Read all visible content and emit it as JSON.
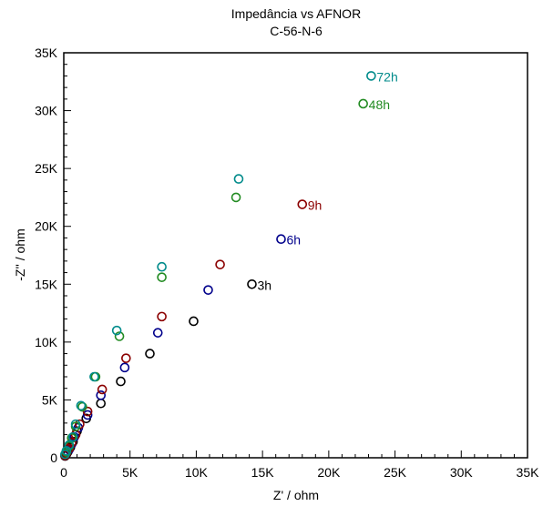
{
  "chart_data": {
    "type": "scatter",
    "title": "Impedância vs AFNOR",
    "subtitle": "C-56-N-6",
    "xlabel": "Z' / ohm",
    "ylabel": "-Z'' / ohm",
    "xlim": [
      0,
      35000
    ],
    "ylim": [
      0,
      35000
    ],
    "xticks": [
      0,
      5000,
      10000,
      15000,
      20000,
      25000,
      30000,
      35000
    ],
    "xtick_labels": [
      "0",
      "5K",
      "10K",
      "15K",
      "20K",
      "25K",
      "30K",
      "35K"
    ],
    "yticks": [
      0,
      5000,
      10000,
      15000,
      20000,
      25000,
      30000,
      35000
    ],
    "ytick_labels": [
      "0",
      "5K",
      "10K",
      "15K",
      "20K",
      "25K",
      "30K",
      "35K"
    ],
    "grid": false,
    "series": [
      {
        "name": "3h",
        "color": "#000000",
        "points": [
          [
            100,
            150
          ],
          [
            200,
            300
          ],
          [
            300,
            500
          ],
          [
            500,
            900
          ],
          [
            700,
            1400
          ],
          [
            1000,
            2300
          ],
          [
            1700,
            3400
          ],
          [
            2800,
            4700
          ],
          [
            4300,
            6600
          ],
          [
            6500,
            9000
          ],
          [
            9800,
            11800
          ],
          [
            14200,
            15000
          ]
        ]
      },
      {
        "name": "6h",
        "color": "#00008b",
        "points": [
          [
            100,
            200
          ],
          [
            200,
            400
          ],
          [
            400,
            700
          ],
          [
            600,
            1200
          ],
          [
            800,
            1800
          ],
          [
            1100,
            2600
          ],
          [
            1800,
            3700
          ],
          [
            2800,
            5400
          ],
          [
            4600,
            7800
          ],
          [
            7100,
            10800
          ],
          [
            10900,
            14500
          ],
          [
            16400,
            18900
          ]
        ]
      },
      {
        "name": "9h",
        "color": "#8b0000",
        "points": [
          [
            100,
            200
          ],
          [
            200,
            400
          ],
          [
            400,
            800
          ],
          [
            600,
            1300
          ],
          [
            900,
            2000
          ],
          [
            1200,
            2900
          ],
          [
            1800,
            4000
          ],
          [
            2900,
            5900
          ],
          [
            4700,
            8600
          ],
          [
            7400,
            12200
          ],
          [
            11800,
            16700
          ],
          [
            18000,
            21900
          ]
        ]
      },
      {
        "name": "48h",
        "color": "#228b22",
        "points": [
          [
            100,
            300
          ],
          [
            200,
            500
          ],
          [
            400,
            1000
          ],
          [
            600,
            1700
          ],
          [
            900,
            2700
          ],
          [
            1400,
            4400
          ],
          [
            2400,
            7000
          ],
          [
            4200,
            10500
          ],
          [
            7400,
            15600
          ],
          [
            13000,
            22500
          ],
          [
            22600,
            30600
          ]
        ]
      },
      {
        "name": "72h",
        "color": "#008b8b",
        "points": [
          [
            100,
            300
          ],
          [
            200,
            600
          ],
          [
            400,
            1100
          ],
          [
            700,
            1800
          ],
          [
            900,
            2900
          ],
          [
            1300,
            4500
          ],
          [
            2300,
            7000
          ],
          [
            4000,
            11000
          ],
          [
            7400,
            16500
          ],
          [
            13200,
            24100
          ],
          [
            23200,
            33000
          ]
        ]
      }
    ]
  }
}
